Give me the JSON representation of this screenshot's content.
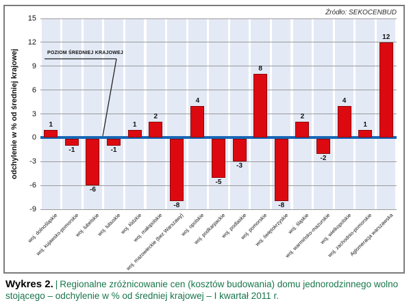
{
  "source_label": "Źródło: SEKOCENBUD",
  "annotation_label": "POZIOM ŚREDNIEJ KRAJOWEJ",
  "caption": {
    "title": "Wykres 2.",
    "separator": "|",
    "text": "Regionalne zróżnicowanie cen (kosztów budowania) domu jednorodzinnego wolno stojącego – odchylenie w % od średniej krajowej – I kwartał 2011 r."
  },
  "chart_data": {
    "type": "bar",
    "title": "",
    "xlabel": "",
    "ylabel": "odchylenie w % od średniej krajowej",
    "categories": [
      "woj. dolnośląskie",
      "woj. kujawsko-pomorskie",
      "woj. lubelskie",
      "woj. lubuskie",
      "woj. łódzkie",
      "woj. małopolskie",
      "woj. mazowieckie (bez Warszawy)",
      "woj. opolskie",
      "woj. podkarpackie",
      "woj. podlaskie",
      "woj. pomorskie",
      "woj. świętokrzyskie",
      "woj. śląskie",
      "woj. warmińsko-mazurskie",
      "woj. wielkopolskie",
      "woj. zachodnio-pomorskie",
      "Aglomeracja warszawska"
    ],
    "values": [
      1,
      -1,
      -6,
      -1,
      1,
      2,
      -8,
      4,
      -5,
      -3,
      8,
      -8,
      2,
      -2,
      4,
      1,
      12
    ],
    "ylim": [
      -9,
      15
    ],
    "yticks": [
      15,
      12,
      9,
      6,
      3,
      0,
      -3,
      -6,
      -9
    ],
    "grid": true,
    "legend": "none",
    "annotation": "POZIOM ŚREDNIEJ KRAJOWEJ"
  },
  "colors": {
    "bar": "#dc0a10",
    "bar_border": "#8e0508",
    "zero_line": "#1766b5",
    "band": "#e3e9f5",
    "gridline": "#9a9a9a",
    "frame_border": "#7a7a7a",
    "caption_green": "#17754a",
    "annotation_line": "#222222"
  }
}
